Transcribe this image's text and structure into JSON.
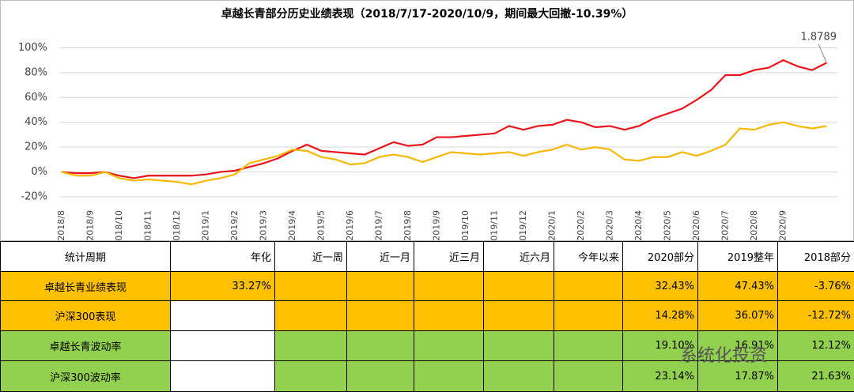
{
  "chart_data": {
    "type": "line",
    "title": "卓越长青部分历史业绩表现（2018/7/17-2020/10/9，期间最大回撤-10.39%）",
    "annotation": "1.8789",
    "categories": [
      "2018/8",
      null,
      "2018/9",
      null,
      "2018/10",
      null,
      "2018/11",
      null,
      "2018/12",
      null,
      "2019/1",
      null,
      "2019/2",
      null,
      "2019/3",
      null,
      "2019/4",
      null,
      "2019/5",
      null,
      "2019/6",
      null,
      "2019/7",
      null,
      "2019/8",
      null,
      "2019/9",
      null,
      "2019/10",
      null,
      "2019/11",
      null,
      "2019/12",
      null,
      "2020/1",
      null,
      "2020/2",
      null,
      "2020/3",
      null,
      "2020/4",
      null,
      "2020/5",
      null,
      "2020/6",
      null,
      "2020/7",
      null,
      "2020/8",
      null,
      "2020/9",
      null,
      null,
      null
    ],
    "series": [
      {
        "color": "#e8141b",
        "values": [
          0,
          -1,
          -1,
          0,
          -3,
          -5,
          -3,
          -3,
          -3,
          -3,
          -2,
          0,
          1,
          4,
          7,
          11,
          17,
          22,
          17,
          16,
          15,
          14,
          19,
          24,
          21,
          22,
          28,
          28,
          29,
          30,
          31,
          37,
          34,
          37,
          38,
          42,
          40,
          36,
          37,
          34,
          37,
          43,
          47,
          51,
          58,
          66,
          78,
          78,
          82,
          84,
          90,
          85,
          82,
          87.89
        ]
      },
      {
        "color": "#f5b800",
        "values": [
          0,
          -3,
          -3,
          0,
          -5,
          -7,
          -6,
          -7,
          -8,
          -10,
          -7,
          -5,
          -2,
          7,
          10,
          13,
          18,
          17,
          12,
          10,
          6,
          7,
          12,
          14,
          12,
          8,
          12,
          16,
          15,
          14,
          15,
          16,
          13,
          16,
          18,
          22,
          18,
          20,
          18,
          10,
          9,
          12,
          12,
          16,
          13,
          17,
          22,
          35,
          34,
          38,
          40,
          37,
          35,
          37
        ]
      }
    ],
    "ylim": [
      -27,
      113
    ],
    "yticks": [
      {
        "value": -20,
        "label": "-20%"
      },
      {
        "value": 0,
        "label": "0%"
      },
      {
        "value": 20,
        "label": "20%"
      },
      {
        "value": 40,
        "label": "40%"
      },
      {
        "value": 60,
        "label": "60%"
      },
      {
        "value": 80,
        "label": "80%"
      },
      {
        "value": 100,
        "label": "100%"
      }
    ],
    "grid": true
  },
  "table": {
    "header": [
      "统计周期",
      "年化",
      "近一周",
      "近一月",
      "近三月",
      "近六月",
      "今年以来",
      "2020部分",
      "2019整年",
      "2018部分"
    ],
    "rows": [
      [
        "卓越长青业绩表现",
        "33.27%",
        null,
        null,
        null,
        null,
        null,
        "32.43%",
        "47.43%",
        "-3.76%"
      ],
      [
        "沪深300表现",
        null,
        null,
        null,
        null,
        null,
        null,
        "14.28%",
        "36.07%",
        "-12.72%"
      ],
      [
        "卓越长青波动率",
        null,
        null,
        null,
        null,
        null,
        null,
        "19.10%",
        "16.91%",
        "12.12%"
      ],
      [
        "沪深300波动率",
        null,
        null,
        null,
        null,
        null,
        null,
        "23.14%",
        "17.87%",
        "21.63%"
      ]
    ]
  },
  "watermark": "系统化投资"
}
